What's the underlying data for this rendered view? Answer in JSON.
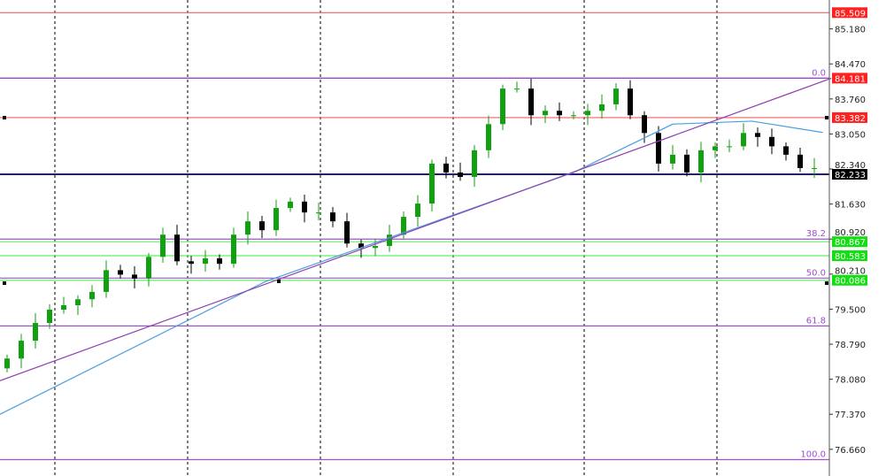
{
  "chart_data": {
    "type": "candlestick",
    "title": "",
    "xlabel": "",
    "ylabel": "",
    "ylim": [
      76.4,
      85.6
    ],
    "grid": {
      "vertical": "dashed",
      "horizontal": false
    },
    "y_ticks": [
      "85.180",
      "84.470",
      "83.760",
      "83.050",
      "82.340",
      "81.630",
      "80.920",
      "80.210",
      "79.500",
      "78.790",
      "78.080",
      "77.370",
      "76.660"
    ],
    "closes": [
      78.5,
      78.86,
      79.22,
      79.49,
      79.58,
      79.7,
      79.85,
      80.29,
      80.2,
      80.12,
      80.56,
      81.01,
      80.47,
      80.42,
      80.53,
      80.42,
      81.01,
      81.28,
      81.1,
      81.55,
      81.68,
      81.46,
      81.46,
      81.28,
      80.83,
      80.74,
      80.78,
      81.01,
      81.37,
      81.64,
      82.45,
      82.27,
      82.18,
      82.72,
      83.25,
      83.97,
      83.97,
      83.43,
      83.52,
      83.43,
      83.43,
      83.52,
      83.65,
      83.97,
      83.43,
      83.07,
      82.45,
      82.63,
      82.27,
      82.72,
      82.8,
      82.8,
      83.07,
      82.99,
      82.8,
      82.63,
      82.36,
      82.36
    ],
    "moving_average": [
      [
        -0.5,
        77.37
      ],
      [
        18.25,
        80.06
      ],
      [
        27.6,
        81.01
      ],
      [
        40,
        82.27
      ],
      [
        47,
        83.25
      ],
      [
        52.6,
        83.31
      ],
      [
        57.6,
        83.08
      ]
    ],
    "trendline": [
      [
        -0.5,
        78.05
      ],
      [
        58.2,
        84.18
      ]
    ],
    "price_lines": [
      {
        "value": "85.509",
        "color": "#ff2020"
      },
      {
        "value": "84.181",
        "color": "#ff2020",
        "line": "#a040d0"
      },
      {
        "value": "83.382",
        "color": "#ff2020"
      },
      {
        "value": "82.233",
        "color": "#000000",
        "line": "#202060"
      },
      {
        "value": "80.867",
        "color": "#10e010"
      },
      {
        "value": "80.583",
        "color": "#10e010"
      },
      {
        "value": "80.086",
        "color": "#10e010"
      }
    ],
    "fibonacci": [
      {
        "level": "0.0",
        "price": 84.181
      },
      {
        "level": "38.2",
        "price": 80.92
      },
      {
        "level": "50.0",
        "price": 80.13
      },
      {
        "level": "61.8",
        "price": 79.16
      },
      {
        "level": "100.0",
        "price": 76.45
      }
    ],
    "colors": {
      "bull": "#10a010",
      "bear": "#000000",
      "ma": "#4aa0e0",
      "trend": "#9040b0",
      "fib": "#a050d0"
    }
  }
}
